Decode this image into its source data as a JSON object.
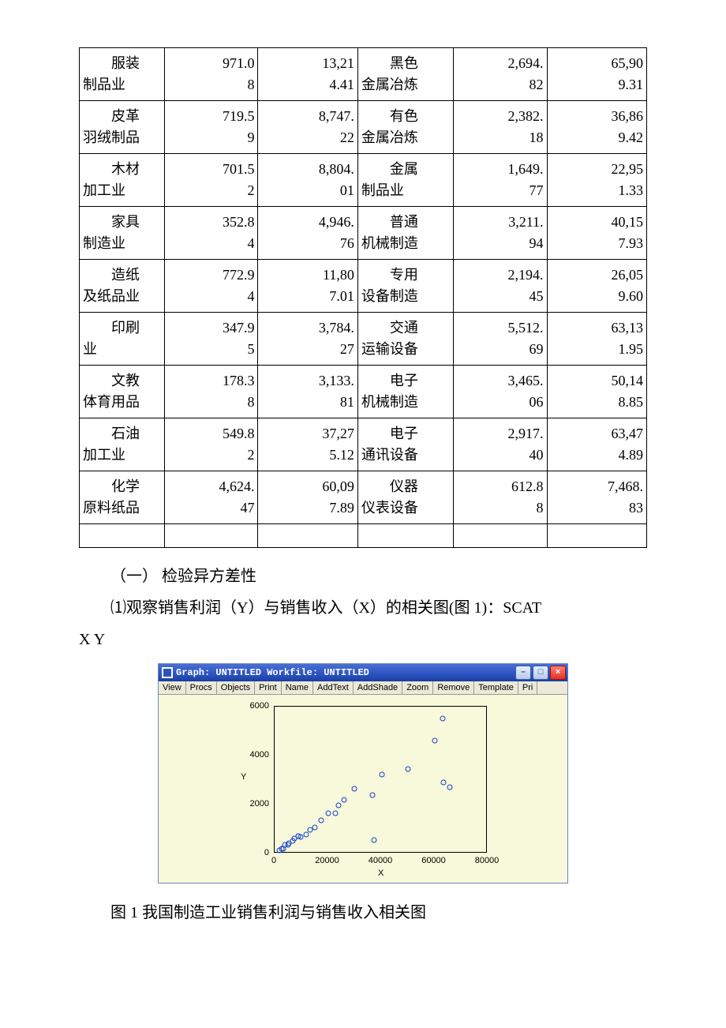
{
  "table": {
    "rows": [
      {
        "a1": "服装",
        "a2": "制品业",
        "b1": "971.0",
        "b2": "8",
        "c1": "13,21",
        "c2": "4.41",
        "d1": "黑色",
        "d2": "金属冶炼",
        "e1": "2,694.",
        "e2": "82",
        "f1": "65,90",
        "f2": "9.31"
      },
      {
        "a1": "皮革",
        "a2": "羽绒制品",
        "b1": "719.5",
        "b2": "9",
        "c1": "8,747.",
        "c2": "22",
        "d1": "有色",
        "d2": "金属冶炼",
        "e1": "2,382.",
        "e2": "18",
        "f1": "36,86",
        "f2": "9.42"
      },
      {
        "a1": "木材",
        "a2": "加工业",
        "b1": "701.5",
        "b2": "2",
        "c1": "8,804.",
        "c2": "01",
        "d1": "金属",
        "d2": "制品业",
        "e1": "1,649.",
        "e2": "77",
        "f1": "22,95",
        "f2": "1.33"
      },
      {
        "a1": "家具",
        "a2": "制造业",
        "b1": "352.8",
        "b2": "4",
        "c1": "4,946.",
        "c2": "76",
        "d1": "普通",
        "d2": "机械制造",
        "e1": "3,211.",
        "e2": "94",
        "f1": "40,15",
        "f2": "7.93"
      },
      {
        "a1": "造纸",
        "a2": "及纸品业",
        "b1": "772.9",
        "b2": "4",
        "c1": "11,80",
        "c2": "7.01",
        "d1": "专用",
        "d2": "设备制造",
        "e1": "2,194.",
        "e2": "45",
        "f1": "26,05",
        "f2": "9.60"
      },
      {
        "a1": "印刷",
        "a2": "业",
        "b1": "347.9",
        "b2": "5",
        "c1": "3,784.",
        "c2": "27",
        "d1": "交通",
        "d2": "运输设备",
        "e1": "5,512.",
        "e2": "69",
        "f1": "63,13",
        "f2": "1.95"
      },
      {
        "a1": "文教",
        "a2": "体育用品",
        "b1": "178.3",
        "b2": "8",
        "c1": "3,133.",
        "c2": "81",
        "d1": "电子",
        "d2": "机械制造",
        "e1": "3,465.",
        "e2": "06",
        "f1": "50,14",
        "f2": "8.85"
      },
      {
        "a1": "石油",
        "a2": "加工业",
        "b1": "549.8",
        "b2": "2",
        "c1": "37,27",
        "c2": "5.12",
        "d1": "电子",
        "d2": "通讯设备",
        "e1": "2,917.",
        "e2": "40",
        "f1": "63,47",
        "f2": "4.89"
      },
      {
        "a1": "化学",
        "a2": "原料纸品",
        "b1": "4,624.",
        "b2": "47",
        "c1": "60,09",
        "c2": "7.89",
        "d1": "仪器",
        "d2": "仪表设备",
        "e1": "612.8",
        "e2": "8",
        "f1": "7,468.",
        "f2": "83"
      }
    ]
  },
  "text": {
    "section_title": "（一） 检验异方差性",
    "para1_a": "⑴观察销售利润（Y）与销售收入（X）的相关图(图 1)：SCAT",
    "para1_b": "X Y",
    "caption": "图 1 我国制造工业销售利润与销售收入相关图"
  },
  "window": {
    "title": "Graph: UNTITLED   Workfile: UNTITLED",
    "min_symbol": "–",
    "max_symbol": "□",
    "close_symbol": "×",
    "toolbar": [
      "View",
      "Procs",
      "Objects",
      "Print",
      "Name",
      "AddText",
      "AddShade",
      "Zoom",
      "Remove",
      "Template",
      "Pri"
    ]
  },
  "scatter": {
    "type": "scatter",
    "xlabel": "X",
    "ylabel": "Y",
    "xlim": [
      0,
      80000
    ],
    "ylim": [
      0,
      6000
    ],
    "xticks": [
      0,
      20000,
      40000,
      60000,
      80000
    ],
    "yticks": [
      0,
      2000,
      4000,
      6000
    ],
    "background": "#f8f8da",
    "frame_color": "#000000",
    "marker_color": "#1040d0",
    "marker_size_px": 7,
    "points": [
      {
        "x": 13214,
        "y": 971
      },
      {
        "x": 8747,
        "y": 720
      },
      {
        "x": 8804,
        "y": 702
      },
      {
        "x": 4947,
        "y": 353
      },
      {
        "x": 11807,
        "y": 773
      },
      {
        "x": 3784,
        "y": 348
      },
      {
        "x": 3134,
        "y": 178
      },
      {
        "x": 37275,
        "y": 550
      },
      {
        "x": 60098,
        "y": 4624
      },
      {
        "x": 65909,
        "y": 2695
      },
      {
        "x": 36869,
        "y": 2382
      },
      {
        "x": 22951,
        "y": 1650
      },
      {
        "x": 40158,
        "y": 3212
      },
      {
        "x": 26060,
        "y": 2194
      },
      {
        "x": 63132,
        "y": 5513
      },
      {
        "x": 50149,
        "y": 3465
      },
      {
        "x": 63475,
        "y": 2917
      },
      {
        "x": 7469,
        "y": 613
      },
      {
        "x": 1800,
        "y": 120
      },
      {
        "x": 2600,
        "y": 180
      },
      {
        "x": 5200,
        "y": 420
      },
      {
        "x": 6800,
        "y": 520
      },
      {
        "x": 9800,
        "y": 680
      },
      {
        "x": 15000,
        "y": 1050
      },
      {
        "x": 17500,
        "y": 1350
      },
      {
        "x": 20000,
        "y": 1650
      },
      {
        "x": 24000,
        "y": 1980
      },
      {
        "x": 30000,
        "y": 2650
      }
    ]
  }
}
